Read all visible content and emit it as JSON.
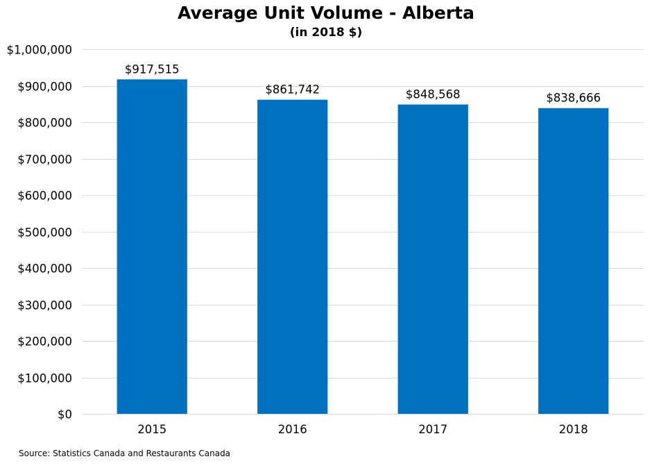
{
  "chart_data": {
    "type": "bar",
    "title": "Average Unit Volume - Alberta",
    "subtitle": "(in 2018 $)",
    "categories": [
      "2015",
      "2016",
      "2017",
      "2018"
    ],
    "values": [
      917515,
      861742,
      848568,
      838666
    ],
    "data_labels": [
      "$917,515",
      "$861,742",
      "$848,568",
      "$838,666"
    ],
    "ylim": [
      0,
      1000000
    ],
    "yticks": [
      0,
      100000,
      200000,
      300000,
      400000,
      500000,
      600000,
      700000,
      800000,
      900000,
      1000000
    ],
    "ytick_labels": [
      "$0",
      "$100,000",
      "$200,000",
      "$300,000",
      "$400,000",
      "$500,000",
      "$600,000",
      "$700,000",
      "$800,000",
      "$900,000",
      "$1,000,000"
    ],
    "grid": true,
    "bar_color": "#0070C0",
    "grid_color": "#D9D9D9"
  },
  "source": "Source: Statistics Canada and Restaurants Canada"
}
